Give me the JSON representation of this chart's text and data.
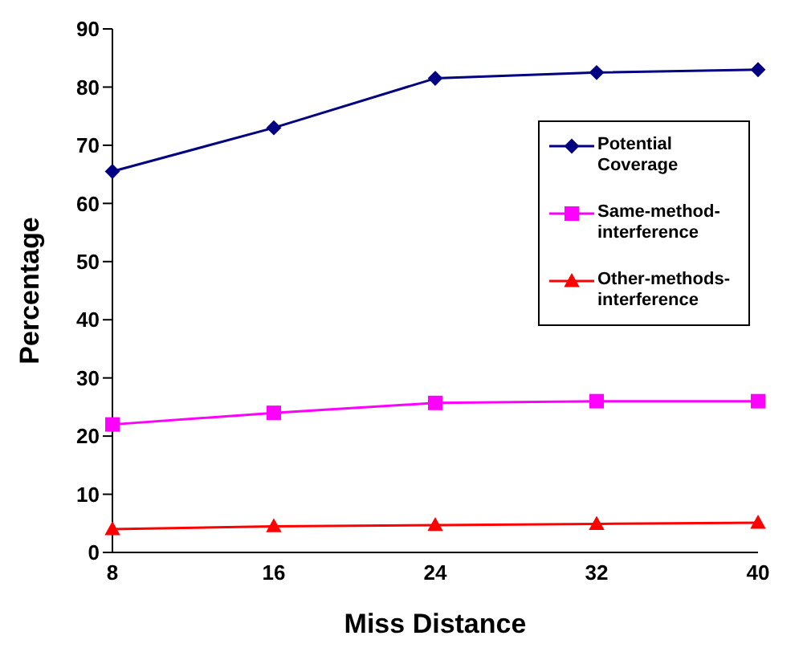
{
  "chart_data": {
    "type": "line",
    "xlabel": "Miss Distance",
    "ylabel": "Percentage",
    "categories": [
      "8",
      "16",
      "24",
      "32",
      "40"
    ],
    "series": [
      {
        "name": "Potential Coverage",
        "color": "#000080",
        "marker": "diamond",
        "values": [
          65.5,
          73,
          81.5,
          82.5,
          83
        ]
      },
      {
        "name": "Same-method-interference",
        "color": "#ff00ff",
        "marker": "square",
        "values": [
          22,
          24,
          25.7,
          26,
          26
        ]
      },
      {
        "name": "Other-methods-interference",
        "color": "#ff0000",
        "marker": "triangle",
        "values": [
          4,
          4.5,
          4.7,
          4.9,
          5.1
        ]
      }
    ],
    "ylim": [
      0,
      90
    ],
    "yticks": [
      0,
      10,
      20,
      30,
      40,
      50,
      60,
      70,
      80,
      90
    ],
    "grid": false,
    "legend": "right",
    "line_style": "solid"
  }
}
